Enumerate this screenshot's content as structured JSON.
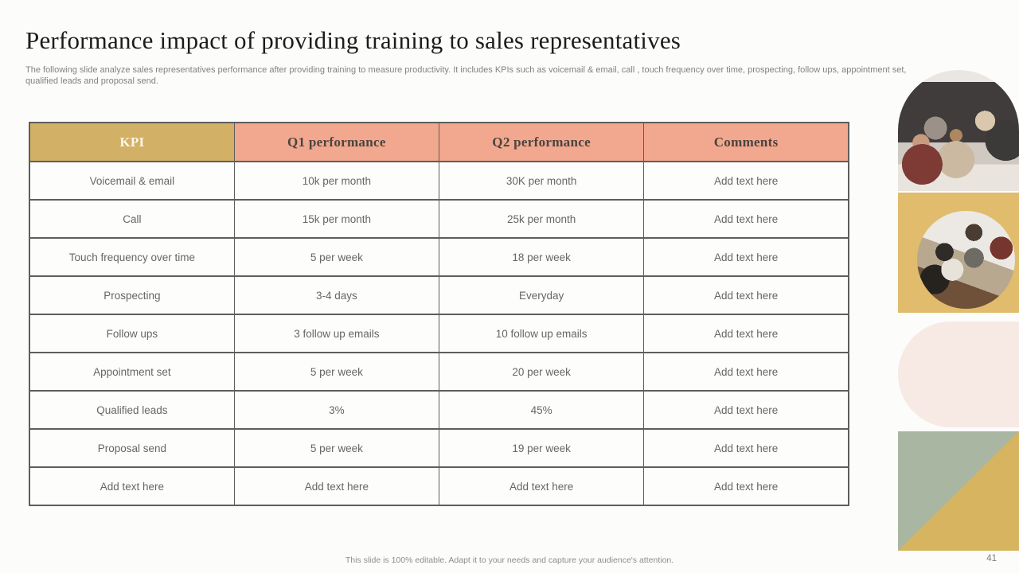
{
  "slide": {
    "title": "Performance impact of providing training to sales representatives",
    "subtitle": "The following slide analyze sales representatives performance after providing training to measure productivity. It includes KPIs such as voicemail & email, call , touch frequency over time, prospecting, follow ups, appointment set, qualified leads and proposal send.",
    "footer": "This slide is 100% editable. Adapt it to your needs and capture your audience's attention.",
    "page_number": "41"
  },
  "table": {
    "headers": [
      "KPI",
      "Q1 performance",
      "Q2 performance",
      "Comments"
    ],
    "rows": [
      [
        "Voicemail & email",
        "10k per month",
        "30K per month",
        "Add text here"
      ],
      [
        "Call",
        "15k per month",
        "25k per month",
        "Add text here"
      ],
      [
        "Touch frequency over time",
        "5 per week",
        "18 per week",
        "Add text here"
      ],
      [
        "Prospecting",
        "3-4 days",
        "Everyday",
        "Add text here"
      ],
      [
        "Follow ups",
        "3 follow up emails",
        "10 follow up emails",
        "Add text here"
      ],
      [
        "Appointment set",
        "5 per week",
        "20 per week",
        "Add text here"
      ],
      [
        "Qualified leads",
        "3%",
        "45%",
        "Add text here"
      ],
      [
        "Proposal send",
        "5 per week",
        "19 per week",
        "Add text here"
      ],
      [
        "Add text here",
        "Add text here",
        "Add text here",
        "Add text here"
      ]
    ]
  },
  "colors": {
    "kpi_header_bg": "#d2b065",
    "kpi_header_text": "#fdf6e8",
    "perf_header_bg": "#f2a88e",
    "perf_header_text": "#4a4440",
    "body_text": "#666666",
    "border": "#5e5e5e",
    "gold_square": "#e0bc6c",
    "pink_shape": "#f7e9e4",
    "green_square": "#a9b6a1",
    "gold_triangle": "#d7b45f"
  },
  "decor": {
    "photo_arch": "team-meeting-photo",
    "photo_circle": "whiteboard-session-photo"
  }
}
